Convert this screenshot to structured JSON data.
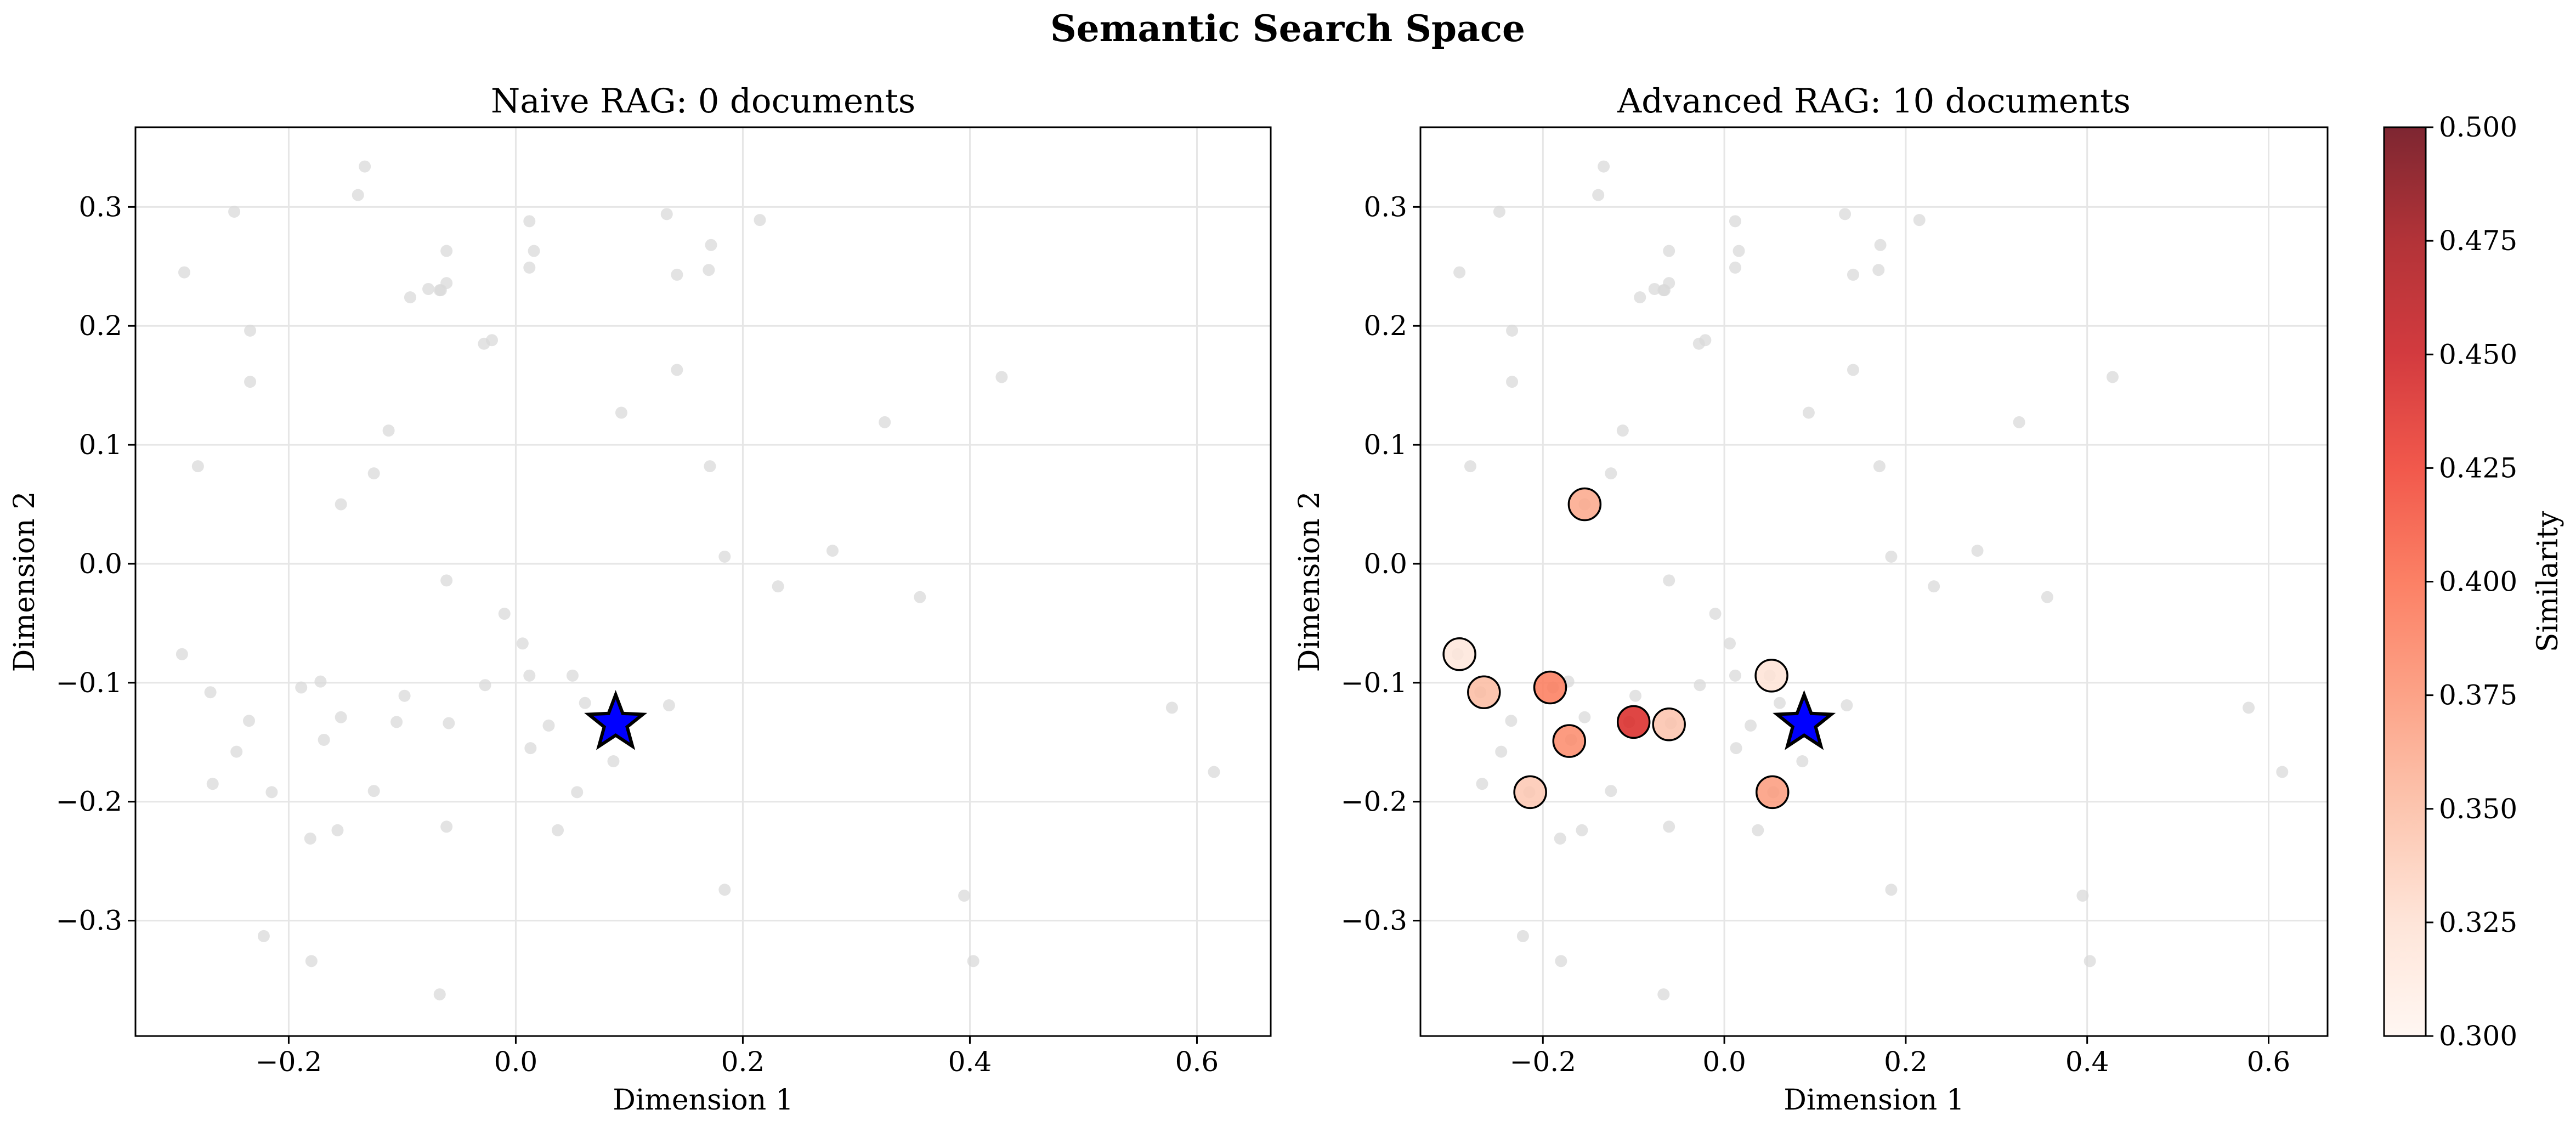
{
  "figure_title": "Semantic Search Space",
  "chart_data": [
    {
      "type": "scatter",
      "title": "Naive RAG: 0 documents",
      "xlabel": "Dimension 1",
      "ylabel": "Dimension 2",
      "xlim": [
        -0.335,
        0.665
      ],
      "ylim": [
        -0.397,
        0.367
      ],
      "xticks": [
        -0.2,
        0.0,
        0.2,
        0.4,
        0.6
      ],
      "xtick_labels": [
        "−0.2",
        "0.0",
        "0.2",
        "0.4",
        "0.6"
      ],
      "yticks": [
        -0.3,
        -0.2,
        -0.1,
        0.0,
        0.1,
        0.2,
        0.3
      ],
      "ytick_labels": [
        "−0.3",
        "−0.2",
        "−0.1",
        "0.0",
        "0.1",
        "0.2",
        "0.3"
      ],
      "grid": true,
      "background_points": {
        "color": "#d9d9d9",
        "x": [
          -0.292,
          -0.248,
          -0.234,
          -0.234,
          -0.28,
          -0.133,
          -0.139,
          -0.061,
          -0.061,
          -0.093,
          -0.077,
          -0.067,
          -0.066,
          -0.028,
          -0.021,
          0.012,
          0.016,
          0.012,
          0.133,
          0.142,
          0.172,
          0.17,
          0.215,
          0.142,
          0.093,
          0.325,
          0.428,
          -0.112,
          -0.125,
          -0.154,
          -0.061,
          -0.01,
          0.171,
          0.184,
          0.231,
          0.279,
          0.356,
          -0.294,
          -0.269,
          -0.235,
          -0.246,
          -0.267,
          -0.215,
          -0.189,
          -0.181,
          -0.169,
          -0.172,
          -0.154,
          -0.157,
          -0.125,
          -0.105,
          -0.098,
          -0.059,
          -0.061,
          -0.027,
          0.006,
          0.012,
          0.013,
          0.029,
          0.05,
          0.054,
          0.061,
          0.086,
          0.037,
          0.135,
          0.184,
          -0.222,
          -0.18,
          -0.067,
          0.395,
          0.403,
          0.578,
          0.615
        ],
        "y": [
          0.245,
          0.296,
          0.196,
          0.153,
          0.082,
          0.334,
          0.31,
          0.263,
          0.236,
          0.224,
          0.231,
          0.23,
          0.23,
          0.185,
          0.188,
          0.288,
          0.263,
          0.249,
          0.294,
          0.243,
          0.268,
          0.247,
          0.289,
          0.163,
          0.127,
          0.119,
          0.157,
          0.112,
          0.076,
          0.05,
          -0.014,
          -0.042,
          0.082,
          0.006,
          -0.019,
          0.011,
          -0.028,
          -0.076,
          -0.108,
          -0.132,
          -0.158,
          -0.185,
          -0.192,
          -0.104,
          -0.231,
          -0.148,
          -0.099,
          -0.129,
          -0.224,
          -0.191,
          -0.133,
          -0.111,
          -0.134,
          -0.221,
          -0.102,
          -0.067,
          -0.094,
          -0.155,
          -0.136,
          -0.094,
          -0.192,
          -0.117,
          -0.166,
          -0.224,
          -0.119,
          -0.274,
          -0.313,
          -0.334,
          -0.362,
          -0.279,
          -0.334,
          -0.121,
          -0.175
        ]
      },
      "query": {
        "x": 0.088,
        "y": -0.134,
        "marker": "star",
        "color": "#0000ff"
      },
      "retrieved": {
        "x": [],
        "y": [],
        "similarity": []
      }
    },
    {
      "type": "scatter",
      "title": "Advanced RAG: 10 documents",
      "xlabel": "Dimension 1",
      "ylabel": "Dimension 2",
      "xlim": [
        -0.335,
        0.665
      ],
      "ylim": [
        -0.397,
        0.367
      ],
      "xticks": [
        -0.2,
        0.0,
        0.2,
        0.4,
        0.6
      ],
      "xtick_labels": [
        "−0.2",
        "0.0",
        "0.2",
        "0.4",
        "0.6"
      ],
      "yticks": [
        -0.3,
        -0.2,
        -0.1,
        0.0,
        0.1,
        0.2,
        0.3
      ],
      "ytick_labels": [
        "−0.3",
        "−0.2",
        "−0.1",
        "0.0",
        "0.1",
        "0.2",
        "0.3"
      ],
      "grid": true,
      "background_points": {
        "color": "#d9d9d9",
        "x": [
          -0.292,
          -0.248,
          -0.234,
          -0.234,
          -0.28,
          -0.133,
          -0.139,
          -0.061,
          -0.061,
          -0.093,
          -0.077,
          -0.067,
          -0.066,
          -0.028,
          -0.021,
          0.012,
          0.016,
          0.012,
          0.133,
          0.142,
          0.172,
          0.17,
          0.215,
          0.142,
          0.093,
          0.325,
          0.428,
          -0.112,
          -0.125,
          -0.154,
          -0.061,
          -0.01,
          0.171,
          0.184,
          0.231,
          0.279,
          0.356,
          -0.294,
          -0.269,
          -0.235,
          -0.246,
          -0.267,
          -0.215,
          -0.189,
          -0.181,
          -0.169,
          -0.172,
          -0.154,
          -0.157,
          -0.125,
          -0.105,
          -0.098,
          -0.059,
          -0.061,
          -0.027,
          0.006,
          0.012,
          0.013,
          0.029,
          0.05,
          0.054,
          0.061,
          0.086,
          0.037,
          0.135,
          0.184,
          -0.222,
          -0.18,
          -0.067,
          0.395,
          0.403,
          0.578,
          0.615
        ],
        "y": [
          0.245,
          0.296,
          0.196,
          0.153,
          0.082,
          0.334,
          0.31,
          0.263,
          0.236,
          0.224,
          0.231,
          0.23,
          0.23,
          0.185,
          0.188,
          0.288,
          0.263,
          0.249,
          0.294,
          0.243,
          0.268,
          0.247,
          0.289,
          0.163,
          0.127,
          0.119,
          0.157,
          0.112,
          0.076,
          0.05,
          -0.014,
          -0.042,
          0.082,
          0.006,
          -0.019,
          0.011,
          -0.028,
          -0.076,
          -0.108,
          -0.132,
          -0.158,
          -0.185,
          -0.192,
          -0.104,
          -0.231,
          -0.148,
          -0.099,
          -0.129,
          -0.224,
          -0.191,
          -0.133,
          -0.111,
          -0.134,
          -0.221,
          -0.102,
          -0.067,
          -0.094,
          -0.155,
          -0.136,
          -0.094,
          -0.192,
          -0.117,
          -0.166,
          -0.224,
          -0.119,
          -0.274,
          -0.313,
          -0.334,
          -0.362,
          -0.279,
          -0.334,
          -0.121,
          -0.175
        ]
      },
      "query": {
        "x": 0.088,
        "y": -0.134,
        "marker": "star",
        "color": "#0000ff"
      },
      "retrieved": {
        "x": [
          -0.1,
          -0.192,
          -0.171,
          -0.154,
          -0.265,
          -0.061,
          -0.214,
          0.053,
          -0.292,
          0.052
        ],
        "y": [
          -0.133,
          -0.104,
          -0.149,
          0.05,
          -0.108,
          -0.135,
          -0.192,
          -0.192,
          -0.076,
          -0.094
        ],
        "similarity": [
          0.44,
          0.39,
          0.38,
          0.362,
          0.35,
          0.345,
          0.342,
          0.37,
          0.318,
          0.322
        ]
      },
      "colorbar": {
        "label": "Similarity",
        "cmap": "Reds",
        "range": [
          0.3,
          0.5
        ],
        "ticks": [
          0.3,
          0.325,
          0.35,
          0.375,
          0.4,
          0.425,
          0.45,
          0.475,
          0.5
        ],
        "tick_labels": [
          "0.300",
          "0.325",
          "0.350",
          "0.375",
          "0.400",
          "0.425",
          "0.450",
          "0.475",
          "0.500"
        ]
      }
    }
  ]
}
